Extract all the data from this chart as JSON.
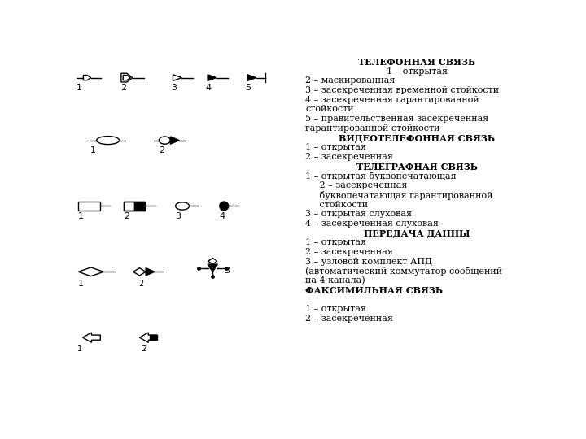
{
  "bg_color": "#ffffff",
  "right_panel": {
    "title1": "ТЕЛЕФОННАЯ СВЯЗЬ",
    "lines": [
      {
        "text": "1 – открытая",
        "bold": false,
        "center": true
      },
      {
        "text": "2 – маскированная",
        "bold": false,
        "center": false
      },
      {
        "text": "3 – засекреченная временной стойкости",
        "bold": false,
        "center": false
      },
      {
        "text": "4 – засекреченная гарантированной",
        "bold": false,
        "center": false
      },
      {
        "text": "стойкости",
        "bold": false,
        "center": false
      },
      {
        "text": "5 – правительственная засекреченная",
        "bold": false,
        "center": false
      },
      {
        "text": "гарантированной стойкости",
        "bold": false,
        "center": false
      },
      {
        "text": "ВИДЕОТЕЛЕФОННАЯ СВЯЗЬ",
        "bold": true,
        "center": true
      },
      {
        "text": "1 – открытая",
        "bold": false,
        "center": false
      },
      {
        "text": "2 – засекреченная",
        "bold": false,
        "center": false
      },
      {
        "text": "ТЕЛЕГРАФНАЯ СВЯЗЬ",
        "bold": true,
        "center": true
      },
      {
        "text": "1 – открытая буквопечатающая",
        "bold": false,
        "center": false
      },
      {
        "text": "     2 – засекреченная",
        "bold": false,
        "center": false
      },
      {
        "text": "     буквопечатающая гарантированной",
        "bold": false,
        "center": false
      },
      {
        "text": "     стойкости",
        "bold": false,
        "center": false
      },
      {
        "text": "3 – открытая слуховая",
        "bold": false,
        "center": false
      },
      {
        "text": "4 – засекреченная слуховая",
        "bold": false,
        "center": false
      },
      {
        "text": "ПЕРЕДАЧА ДАННЫ",
        "bold": true,
        "center": true
      },
      {
        "text": "1 – открытая",
        "bold": false,
        "center": false
      },
      {
        "text": "2 – засекреченная",
        "bold": false,
        "center": false
      },
      {
        "text": "3 – узловой комплект АПД",
        "bold": false,
        "center": false
      },
      {
        "text": "(автоматический коммутатор сообщений",
        "bold": false,
        "center": false
      },
      {
        "text": "на 4 канала)",
        "bold": false,
        "center": false
      },
      {
        "text": "ФАКСИМИЛЬНАЯ СВЯЗЬ",
        "bold": true,
        "center": false
      },
      {
        "text": "",
        "bold": false,
        "center": false
      },
      {
        "text": "1 – открытая",
        "bold": false,
        "center": false
      },
      {
        "text": "2 – засекреченная",
        "bold": false,
        "center": false
      }
    ]
  }
}
